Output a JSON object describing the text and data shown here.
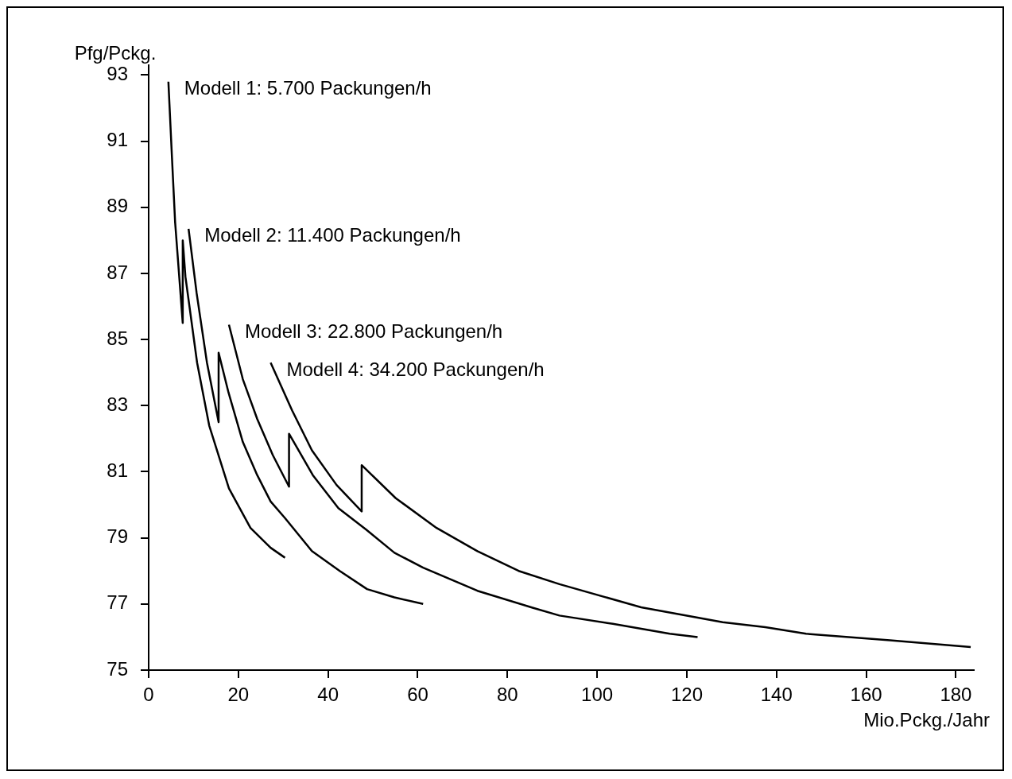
{
  "chart_data": {
    "type": "line",
    "xlabel": "Mio.Pckg./Jahr",
    "ylabel": "Pfg/Pckg.",
    "xlim": [
      0,
      184
    ],
    "xticks": [
      0,
      20,
      40,
      60,
      80,
      100,
      120,
      140,
      160,
      180
    ],
    "ylim": [
      75,
      93.3
    ],
    "yticks": [
      75,
      77,
      79,
      81,
      83,
      85,
      87,
      89,
      91,
      93
    ],
    "series": [
      {
        "name": "Modell 1: 5.700 Packungen/h",
        "color": "#000000",
        "x": [
          4.4,
          5.2,
          5.9,
          7.6,
          7.6,
          8.2,
          10.8,
          13.5,
          17.9,
          22.7,
          27.2,
          30.4
        ],
        "values": [
          92.8,
          90.5,
          88.55,
          85.5,
          88.0,
          86.9,
          84.3,
          82.4,
          80.5,
          79.3,
          78.7,
          78.4
        ]
      },
      {
        "name": "Modell 2: 11.400 Packungen/h",
        "color": "#000000",
        "x": [
          8.9,
          10.7,
          13.0,
          15.6,
          15.6,
          17.8,
          21.0,
          24.2,
          27.2,
          30.4,
          36.4,
          42.6,
          48.7,
          54.8,
          61.2
        ],
        "values": [
          88.35,
          86.4,
          84.3,
          82.5,
          84.6,
          83.4,
          81.9,
          80.9,
          80.1,
          79.6,
          78.6,
          78.0,
          77.45,
          77.2,
          77.0
        ]
      },
      {
        "name": "Modell 3: 22.800 Packungen/h",
        "color": "#000000",
        "x": [
          17.9,
          21.0,
          24.2,
          27.7,
          31.3,
          31.3,
          36.6,
          42.3,
          48.5,
          54.8,
          61.2,
          73.3,
          85.3,
          91.6,
          103.5,
          116.2,
          122.4
        ],
        "values": [
          85.45,
          83.8,
          82.6,
          81.5,
          80.55,
          82.15,
          80.9,
          79.9,
          79.25,
          78.55,
          78.1,
          77.4,
          76.9,
          76.65,
          76.4,
          76.1,
          76.0
        ]
      },
      {
        "name": "Modell 4: 34.200 Packungen/h",
        "color": "#000000",
        "x": [
          27.2,
          32.0,
          36.4,
          41.9,
          47.5,
          47.5,
          55.1,
          64.2,
          73.3,
          82.5,
          91.6,
          109.8,
          128.0,
          137.5,
          146.6,
          165.3,
          183.3
        ],
        "values": [
          84.3,
          82.85,
          81.65,
          80.6,
          79.8,
          81.2,
          80.2,
          79.3,
          78.6,
          78.0,
          77.6,
          76.9,
          76.45,
          76.3,
          76.1,
          75.9,
          75.7
        ]
      }
    ]
  }
}
